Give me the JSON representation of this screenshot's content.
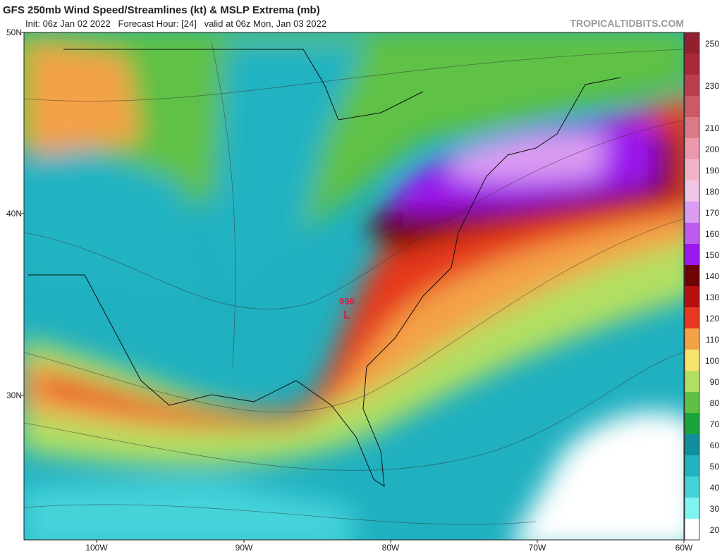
{
  "header": {
    "title": "GFS 250mb Wind Speed/Streamlines (kt) & MSLP Extrema (mb)",
    "subtitle": "Init: 06z Jan 02 2022   Forecast Hour: [24]   valid at 06z Mon, Jan 03 2022",
    "site": "TROPICALTIDBITS.COM"
  },
  "map": {
    "lat_labels": [
      "50N",
      "40N",
      "30N"
    ],
    "lon_labels": [
      "100W",
      "90W",
      "80W",
      "70W",
      "60W"
    ],
    "lows": [
      {
        "pressure": "996",
        "symbol": "L"
      }
    ]
  },
  "colorbar": {
    "ticks": [
      20,
      30,
      40,
      50,
      60,
      70,
      80,
      90,
      100,
      110,
      120,
      130,
      140,
      150,
      160,
      170,
      180,
      190,
      200,
      210,
      220,
      230,
      240,
      250
    ],
    "labels_shown": [
      20,
      30,
      40,
      50,
      60,
      70,
      80,
      90,
      100,
      110,
      120,
      130,
      140,
      150,
      160,
      170,
      180,
      190,
      200,
      210,
      230,
      250
    ],
    "colors": [
      "#ffffff",
      "#7ff3f0",
      "#45d3da",
      "#22b3c2",
      "#0f8e9e",
      "#18a53a",
      "#5ec144",
      "#b2df62",
      "#f6e36c",
      "#f4a246",
      "#e5381f",
      "#b4100f",
      "#6e0303",
      "#9c17ee",
      "#bd5bf0",
      "#dc9cf2",
      "#f1c5e4",
      "#f3b3c7",
      "#ec97ac",
      "#dd7886",
      "#cb5966",
      "#bb3d4c",
      "#a9293a",
      "#92202f"
    ]
  }
}
